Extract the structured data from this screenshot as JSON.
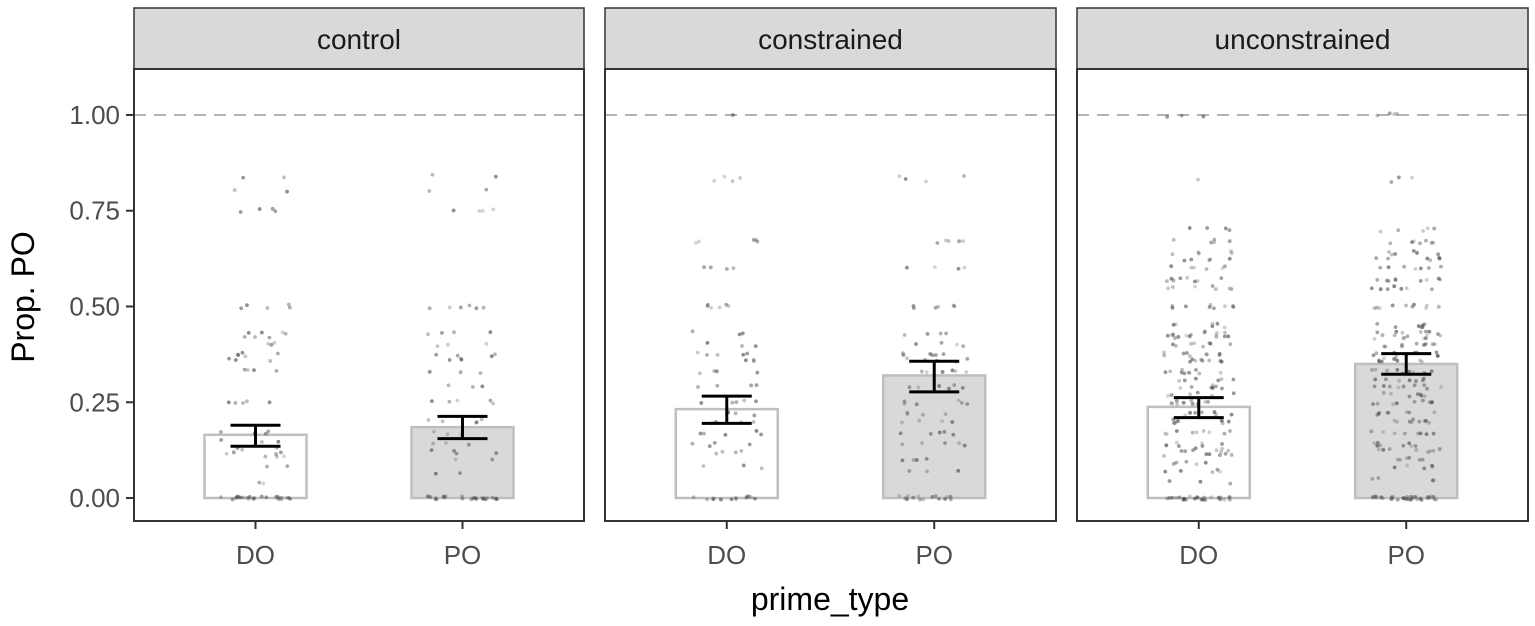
{
  "chart_data": {
    "type": "bar",
    "xlabel": "prime_type",
    "ylabel": "Prop. PO",
    "ylim": [
      -0.06,
      1.12
    ],
    "yticks": [
      0.0,
      0.25,
      0.5,
      0.75,
      1.0
    ],
    "ytick_labels": [
      "0.00",
      "0.25",
      "0.50",
      "0.75",
      "1.00"
    ],
    "reference_line": {
      "y": 1.0,
      "style": "dashed"
    },
    "categories": [
      "DO",
      "PO"
    ],
    "grid": false,
    "colors": {
      "DO_fill": "#ffffff",
      "PO_fill": "#d9d9d9",
      "bar_stroke": "#bfbfbf",
      "error_bar": "#000000",
      "strip": "#d9d9d9",
      "panel_border": "#333333",
      "reference_line": "#b3b3b3",
      "point": "#555555"
    },
    "facets": [
      {
        "label": "control",
        "bars": [
          {
            "category": "DO",
            "mean": 0.165,
            "ci_low": 0.135,
            "ci_high": 0.19
          },
          {
            "category": "PO",
            "mean": 0.185,
            "ci_low": 0.155,
            "ci_high": 0.213
          }
        ],
        "points": {
          "DO": [
            [
              0.0,
              24
            ],
            [
              0.04,
              2
            ],
            [
              0.08,
              2
            ],
            [
              0.11,
              3
            ],
            [
              0.12,
              4
            ],
            [
              0.13,
              3
            ],
            [
              0.15,
              3
            ],
            [
              0.17,
              4
            ],
            [
              0.25,
              5
            ],
            [
              0.33,
              4
            ],
            [
              0.36,
              3
            ],
            [
              0.375,
              5
            ],
            [
              0.4,
              3
            ],
            [
              0.42,
              3
            ],
            [
              0.43,
              4
            ],
            [
              0.5,
              5
            ],
            [
              0.75,
              4
            ],
            [
              0.8,
              2
            ],
            [
              0.84,
              2
            ]
          ],
          "PO": [
            [
              0.0,
              26
            ],
            [
              0.06,
              2
            ],
            [
              0.1,
              2
            ],
            [
              0.12,
              4
            ],
            [
              0.14,
              3
            ],
            [
              0.17,
              3
            ],
            [
              0.2,
              5
            ],
            [
              0.25,
              5
            ],
            [
              0.29,
              3
            ],
            [
              0.33,
              3
            ],
            [
              0.36,
              3
            ],
            [
              0.375,
              4
            ],
            [
              0.4,
              3
            ],
            [
              0.43,
              4
            ],
            [
              0.5,
              6
            ],
            [
              0.75,
              5
            ],
            [
              0.8,
              2
            ],
            [
              0.84,
              2
            ]
          ]
        }
      },
      {
        "label": "constrained",
        "bars": [
          {
            "category": "DO",
            "mean": 0.232,
            "ci_low": 0.195,
            "ci_high": 0.266
          },
          {
            "category": "PO",
            "mean": 0.32,
            "ci_low": 0.277,
            "ci_high": 0.357
          }
        ],
        "points": {
          "DO": [
            [
              0.0,
              14
            ],
            [
              0.08,
              3
            ],
            [
              0.12,
              4
            ],
            [
              0.14,
              4
            ],
            [
              0.17,
              5
            ],
            [
              0.2,
              4
            ],
            [
              0.22,
              3
            ],
            [
              0.25,
              5
            ],
            [
              0.29,
              4
            ],
            [
              0.33,
              4
            ],
            [
              0.36,
              3
            ],
            [
              0.375,
              5
            ],
            [
              0.4,
              3
            ],
            [
              0.43,
              3
            ],
            [
              0.5,
              6
            ],
            [
              0.6,
              4
            ],
            [
              0.67,
              5
            ],
            [
              0.83,
              2
            ],
            [
              0.84,
              2
            ],
            [
              1.0,
              1
            ]
          ],
          "PO": [
            [
              0.0,
              16
            ],
            [
              0.07,
              3
            ],
            [
              0.1,
              4
            ],
            [
              0.14,
              5
            ],
            [
              0.17,
              5
            ],
            [
              0.2,
              4
            ],
            [
              0.22,
              4
            ],
            [
              0.25,
              6
            ],
            [
              0.29,
              6
            ],
            [
              0.33,
              6
            ],
            [
              0.36,
              5
            ],
            [
              0.375,
              6
            ],
            [
              0.4,
              4
            ],
            [
              0.43,
              4
            ],
            [
              0.5,
              6
            ],
            [
              0.6,
              4
            ],
            [
              0.67,
              5
            ],
            [
              0.83,
              2
            ],
            [
              0.84,
              2
            ]
          ]
        }
      },
      {
        "label": "unconstrained",
        "bars": [
          {
            "category": "DO",
            "mean": 0.238,
            "ci_low": 0.21,
            "ci_high": 0.262
          },
          {
            "category": "PO",
            "mean": 0.35,
            "ci_low": 0.323,
            "ci_high": 0.377
          }
        ],
        "points": {
          "DO": [
            [
              0.0,
              30
            ],
            [
              0.04,
              4
            ],
            [
              0.07,
              5
            ],
            [
              0.09,
              5
            ],
            [
              0.11,
              6
            ],
            [
              0.125,
              8
            ],
            [
              0.14,
              7
            ],
            [
              0.17,
              9
            ],
            [
              0.2,
              9
            ],
            [
              0.22,
              7
            ],
            [
              0.25,
              10
            ],
            [
              0.27,
              6
            ],
            [
              0.29,
              8
            ],
            [
              0.31,
              6
            ],
            [
              0.33,
              10
            ],
            [
              0.36,
              8
            ],
            [
              0.375,
              9
            ],
            [
              0.4,
              8
            ],
            [
              0.42,
              9
            ],
            [
              0.43,
              8
            ],
            [
              0.45,
              6
            ],
            [
              0.5,
              9
            ],
            [
              0.55,
              7
            ],
            [
              0.57,
              8
            ],
            [
              0.6,
              6
            ],
            [
              0.625,
              5
            ],
            [
              0.64,
              5
            ],
            [
              0.67,
              6
            ],
            [
              0.7,
              4
            ],
            [
              0.83,
              1
            ],
            [
              1.0,
              3
            ]
          ],
          "PO": [
            [
              0.0,
              34
            ],
            [
              0.05,
              4
            ],
            [
              0.08,
              5
            ],
            [
              0.1,
              6
            ],
            [
              0.125,
              8
            ],
            [
              0.14,
              8
            ],
            [
              0.17,
              9
            ],
            [
              0.2,
              9
            ],
            [
              0.22,
              8
            ],
            [
              0.25,
              10
            ],
            [
              0.27,
              7
            ],
            [
              0.29,
              9
            ],
            [
              0.31,
              7
            ],
            [
              0.33,
              10
            ],
            [
              0.36,
              9
            ],
            [
              0.375,
              10
            ],
            [
              0.4,
              9
            ],
            [
              0.42,
              9
            ],
            [
              0.43,
              8
            ],
            [
              0.45,
              7
            ],
            [
              0.5,
              10
            ],
            [
              0.55,
              8
            ],
            [
              0.57,
              9
            ],
            [
              0.6,
              7
            ],
            [
              0.625,
              6
            ],
            [
              0.64,
              6
            ],
            [
              0.67,
              7
            ],
            [
              0.7,
              5
            ],
            [
              0.83,
              1
            ],
            [
              0.84,
              2
            ],
            [
              1.0,
              4
            ]
          ]
        }
      }
    ]
  }
}
